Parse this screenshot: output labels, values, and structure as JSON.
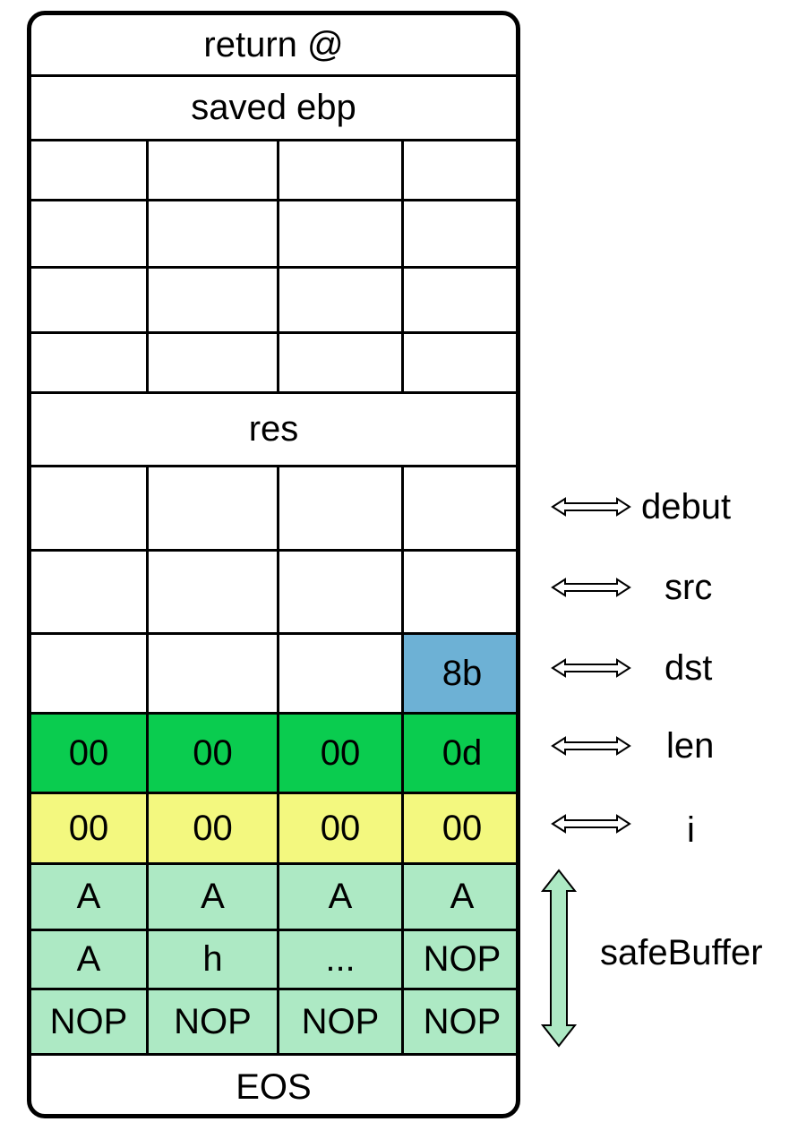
{
  "stack": {
    "return_addr": "return @",
    "saved_ebp": "saved ebp",
    "res": "res",
    "eos": "EOS",
    "dst_row": [
      "",
      "",
      "",
      "8b"
    ],
    "len_row": [
      "00",
      "00",
      "00",
      "0d"
    ],
    "i_row": [
      "00",
      "00",
      "00",
      "00"
    ],
    "buffer_rows": [
      [
        "A",
        "A",
        "A",
        "A"
      ],
      [
        "A",
        "h",
        "...",
        "NOP"
      ],
      [
        "NOP",
        "NOP",
        "NOP",
        "NOP"
      ]
    ]
  },
  "labels": {
    "debut": "debut",
    "src": "src",
    "dst": "dst",
    "len": "len",
    "i": "i",
    "safe_buffer": "safeBuffer"
  },
  "colors": {
    "len": "#0acc4f",
    "i": "#f3f87f",
    "safe_buffer": "#ade9c4",
    "dst_byte": "#6db1d5",
    "border": "#000000"
  }
}
